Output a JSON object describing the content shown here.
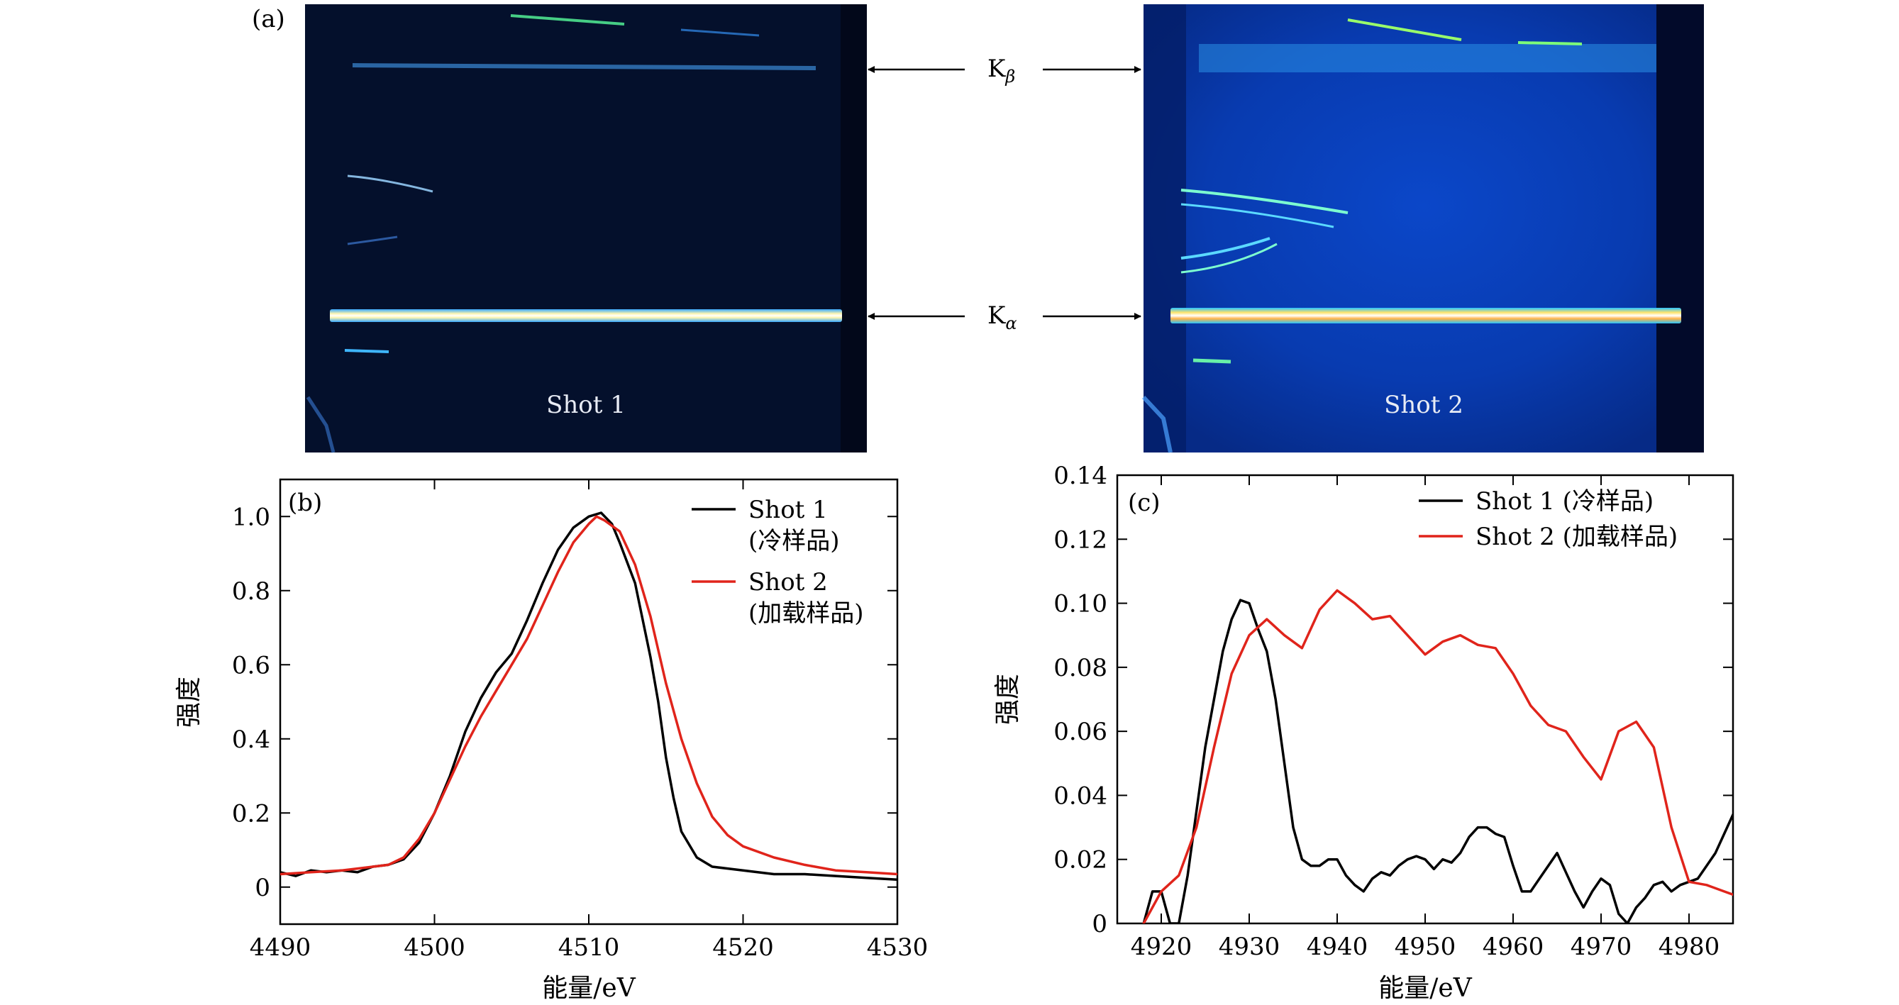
{
  "panel_a": {
    "label": "(a)",
    "shot_labels": [
      "Shot 1",
      "Shot 2"
    ],
    "line_labels": [
      {
        "base": "K",
        "sub": "β"
      },
      {
        "base": "K",
        "sub": "α"
      }
    ]
  },
  "chart_data": [
    {
      "type": "line",
      "panel": "(b)",
      "title": "",
      "xlabel": "能量/eV",
      "ylabel": "强度",
      "xlim": [
        4490,
        4530
      ],
      "ylim": [
        -0.1,
        1.1
      ],
      "xticks": [
        4490,
        4500,
        4510,
        4520,
        4530
      ],
      "xtick_labels": [
        "4490",
        "4500",
        "4510",
        "4520",
        "4530"
      ],
      "yticks": [
        0,
        0.2,
        0.4,
        0.6,
        0.8,
        1.0
      ],
      "ytick_labels": [
        "0",
        "0.2",
        "0.4",
        "0.6",
        "0.8",
        "1.0"
      ],
      "grid": false,
      "legend_position": "top-right",
      "legend": [
        {
          "lines": [
            "Shot 1",
            "(冷样品)"
          ],
          "color": "#000000"
        },
        {
          "lines": [
            "Shot 2",
            "(加载样品)"
          ],
          "color": "#e0241b"
        }
      ],
      "series": [
        {
          "color": "#000000",
          "x": [
            4490,
            4491,
            4492,
            4493,
            4494,
            4495,
            4496,
            4497,
            4498,
            4499,
            4500,
            4501,
            4502,
            4503,
            4504,
            4505,
            4506,
            4507,
            4508,
            4509,
            4510,
            4510.8,
            4511.5,
            4512,
            4513,
            4514,
            4514.5,
            4515,
            4515.5,
            4516,
            4517,
            4518,
            4519,
            4520,
            4522,
            4524,
            4526,
            4528,
            4530
          ],
          "y": [
            0.04,
            0.03,
            0.045,
            0.04,
            0.045,
            0.04,
            0.055,
            0.06,
            0.075,
            0.12,
            0.2,
            0.3,
            0.42,
            0.51,
            0.58,
            0.63,
            0.72,
            0.82,
            0.91,
            0.97,
            1.0,
            1.01,
            0.98,
            0.93,
            0.82,
            0.62,
            0.5,
            0.35,
            0.24,
            0.15,
            0.08,
            0.055,
            0.05,
            0.045,
            0.035,
            0.035,
            0.03,
            0.025,
            0.02
          ]
        },
        {
          "color": "#e0241b",
          "x": [
            4490,
            4492,
            4494,
            4496,
            4497,
            4498,
            4499,
            4500,
            4501,
            4502,
            4503,
            4504,
            4505,
            4506,
            4507,
            4508,
            4509,
            4510,
            4510.5,
            4511,
            4512,
            4513,
            4514,
            4515,
            4516,
            4517,
            4518,
            4519,
            4520,
            4522,
            4524,
            4526,
            4528,
            4530
          ],
          "y": [
            0.035,
            0.04,
            0.045,
            0.055,
            0.06,
            0.08,
            0.13,
            0.2,
            0.29,
            0.38,
            0.46,
            0.53,
            0.6,
            0.67,
            0.76,
            0.85,
            0.93,
            0.98,
            1.0,
            0.99,
            0.96,
            0.87,
            0.73,
            0.55,
            0.4,
            0.28,
            0.19,
            0.14,
            0.11,
            0.08,
            0.06,
            0.045,
            0.04,
            0.035
          ]
        }
      ]
    },
    {
      "type": "line",
      "panel": "(c)",
      "title": "",
      "xlabel": "能量/eV",
      "ylabel": "强度",
      "xlim": [
        4915,
        4985
      ],
      "ylim": [
        0,
        0.14
      ],
      "xticks": [
        4920,
        4930,
        4940,
        4950,
        4960,
        4970,
        4980
      ],
      "xtick_labels": [
        "4920",
        "4930",
        "4940",
        "4950",
        "4960",
        "4970",
        "4980"
      ],
      "yticks": [
        0,
        0.02,
        0.04,
        0.06,
        0.08,
        0.1,
        0.12,
        0.14
      ],
      "ytick_labels": [
        "0",
        "0.02",
        "0.04",
        "0.06",
        "0.08",
        "0.10",
        "0.12",
        "0.14"
      ],
      "grid": false,
      "legend_position": "top-right",
      "legend": [
        {
          "lines": [
            "Shot 1 (冷样品)"
          ],
          "color": "#000000"
        },
        {
          "lines": [
            "Shot 2 (加载样品)"
          ],
          "color": "#e0241b"
        }
      ],
      "series": [
        {
          "color": "#000000",
          "x": [
            4918,
            4919,
            4920,
            4921,
            4922,
            4923,
            4924,
            4925,
            4926,
            4927,
            4928,
            4929,
            4930,
            4931,
            4932,
            4933,
            4934,
            4935,
            4936,
            4937,
            4938,
            4939,
            4940,
            4941,
            4942,
            4943,
            4944,
            4945,
            4946,
            4947,
            4948,
            4949,
            4950,
            4951,
            4952,
            4953,
            4954,
            4955,
            4956,
            4957,
            4958,
            4959,
            4960,
            4961,
            4962,
            4963,
            4964,
            4965,
            4966,
            4967,
            4968,
            4969,
            4970,
            4971,
            4972,
            4973,
            4974,
            4975,
            4976,
            4977,
            4978,
            4979,
            4980,
            4981,
            4982,
            4983,
            4984,
            4985
          ],
          "y": [
            0.0,
            0.01,
            0.01,
            0.0,
            0.0,
            0.015,
            0.035,
            0.055,
            0.07,
            0.085,
            0.095,
            0.101,
            0.1,
            0.092,
            0.085,
            0.07,
            0.05,
            0.03,
            0.02,
            0.018,
            0.018,
            0.02,
            0.02,
            0.015,
            0.012,
            0.01,
            0.014,
            0.016,
            0.015,
            0.018,
            0.02,
            0.021,
            0.02,
            0.017,
            0.02,
            0.019,
            0.022,
            0.027,
            0.03,
            0.03,
            0.028,
            0.027,
            0.018,
            0.01,
            0.01,
            0.014,
            0.018,
            0.022,
            0.016,
            0.01,
            0.005,
            0.01,
            0.014,
            0.012,
            0.003,
            0.0,
            0.005,
            0.008,
            0.012,
            0.013,
            0.01,
            0.012,
            0.013,
            0.014,
            0.018,
            0.022,
            0.028,
            0.034
          ]
        },
        {
          "color": "#e0241b",
          "x": [
            4918,
            4920,
            4922,
            4924,
            4926,
            4928,
            4930,
            4932,
            4934,
            4936,
            4938,
            4940,
            4942,
            4944,
            4946,
            4948,
            4950,
            4952,
            4954,
            4956,
            4958,
            4960,
            4962,
            4964,
            4966,
            4968,
            4970,
            4972,
            4974,
            4976,
            4978,
            4980,
            4982,
            4984,
            4985
          ],
          "y": [
            0.0,
            0.01,
            0.015,
            0.03,
            0.055,
            0.078,
            0.09,
            0.095,
            0.09,
            0.086,
            0.098,
            0.104,
            0.1,
            0.095,
            0.096,
            0.09,
            0.084,
            0.088,
            0.09,
            0.087,
            0.086,
            0.078,
            0.068,
            0.062,
            0.06,
            0.052,
            0.045,
            0.06,
            0.063,
            0.055,
            0.03,
            0.013,
            0.012,
            0.01,
            0.009
          ]
        }
      ]
    }
  ]
}
